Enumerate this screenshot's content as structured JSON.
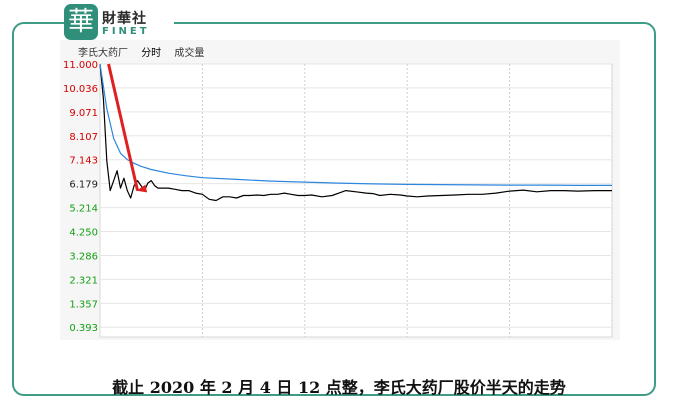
{
  "brand": {
    "mark": "華",
    "name_cn": "財華社",
    "name_en": "FINET"
  },
  "chart_header": {
    "stock": "李氏大药厂",
    "tab_active": "分时",
    "tab_volume": "成交量"
  },
  "caption": "截止 2020 年 2 月 4 日 12 点整，李氏大药厂股价半天的走势",
  "colors": {
    "frame": "#3d9b86",
    "price_line": "#000000",
    "avg_line": "#2e86de",
    "arrow": "#e02020",
    "tick_red": "#d40000",
    "tick_green": "#14a014"
  },
  "chart_data": {
    "type": "line",
    "title": "",
    "xlabel": "",
    "ylabel": "",
    "ylim": [
      0.0,
      11.0
    ],
    "y_ticks": [
      11.0,
      10.036,
      9.071,
      8.107,
      7.143,
      6.179,
      5.214,
      4.25,
      3.286,
      2.321,
      1.357,
      0.393
    ],
    "y_ticks_red": [
      11.0,
      10.036,
      9.071,
      8.107,
      7.143
    ],
    "y_ticks_black": [
      6.179
    ],
    "x_range": [
      0,
      150
    ],
    "x_gridlines": [
      30,
      60,
      90,
      120,
      150
    ],
    "grid": true,
    "series": [
      {
        "key": "price",
        "x": [
          0,
          1,
          2,
          3,
          4,
          5,
          6,
          7,
          8,
          9,
          10,
          11,
          12,
          13,
          14,
          15,
          16,
          17,
          18,
          20,
          22,
          24,
          26,
          28,
          30,
          32,
          34,
          36,
          38,
          40,
          42,
          44,
          46,
          48,
          50,
          52,
          54,
          56,
          58,
          60,
          62,
          65,
          68,
          70,
          72,
          75,
          78,
          80,
          82,
          85,
          88,
          90,
          93,
          96,
          100,
          104,
          108,
          112,
          116,
          120,
          124,
          128,
          132,
          136,
          140,
          145,
          150
        ],
        "values": [
          11.0,
          9.6,
          7.1,
          5.9,
          6.3,
          6.7,
          6.0,
          6.4,
          5.9,
          5.6,
          6.1,
          6.3,
          6.1,
          5.9,
          6.2,
          6.3,
          6.1,
          6.0,
          6.0,
          6.0,
          5.95,
          5.9,
          5.9,
          5.8,
          5.75,
          5.55,
          5.5,
          5.65,
          5.65,
          5.6,
          5.7,
          5.7,
          5.72,
          5.7,
          5.75,
          5.75,
          5.8,
          5.75,
          5.7,
          5.7,
          5.72,
          5.65,
          5.7,
          5.8,
          5.9,
          5.85,
          5.8,
          5.78,
          5.7,
          5.75,
          5.72,
          5.68,
          5.65,
          5.68,
          5.7,
          5.72,
          5.75,
          5.75,
          5.8,
          5.88,
          5.92,
          5.85,
          5.9,
          5.9,
          5.88,
          5.9,
          5.9
        ]
      },
      {
        "key": "average",
        "x": [
          0,
          2,
          4,
          6,
          8,
          10,
          12,
          15,
          20,
          25,
          30,
          40,
          50,
          60,
          70,
          80,
          90,
          100,
          110,
          120,
          130,
          140,
          150
        ],
        "values": [
          11.0,
          9.2,
          8.0,
          7.4,
          7.15,
          7.0,
          6.88,
          6.75,
          6.6,
          6.5,
          6.42,
          6.35,
          6.28,
          6.24,
          6.2,
          6.17,
          6.15,
          6.14,
          6.13,
          6.12,
          6.12,
          6.11,
          6.11
        ]
      }
    ],
    "annotation": {
      "type": "arrow",
      "from": [
        2.5,
        11.0
      ],
      "to": [
        11.0,
        5.9
      ]
    }
  }
}
